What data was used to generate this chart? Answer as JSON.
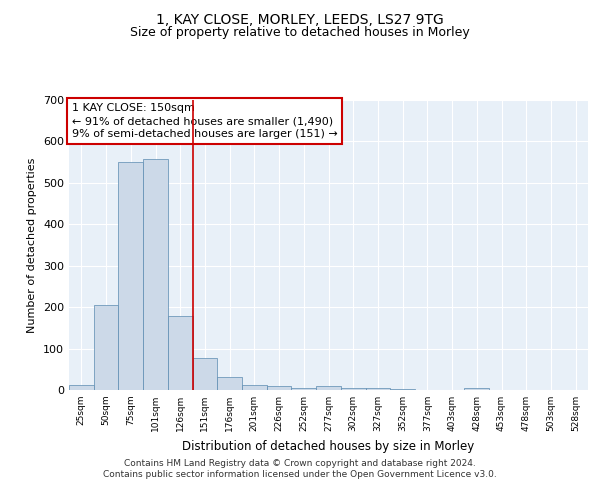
{
  "title1": "1, KAY CLOSE, MORLEY, LEEDS, LS27 9TG",
  "title2": "Size of property relative to detached houses in Morley",
  "xlabel": "Distribution of detached houses by size in Morley",
  "ylabel": "Number of detached properties",
  "footer1": "Contains HM Land Registry data © Crown copyright and database right 2024.",
  "footer2": "Contains public sector information licensed under the Open Government Licence v3.0.",
  "categories": [
    "25sqm",
    "50sqm",
    "75sqm",
    "101sqm",
    "126sqm",
    "151sqm",
    "176sqm",
    "201sqm",
    "226sqm",
    "252sqm",
    "277sqm",
    "302sqm",
    "327sqm",
    "352sqm",
    "377sqm",
    "403sqm",
    "428sqm",
    "453sqm",
    "478sqm",
    "503sqm",
    "528sqm"
  ],
  "values": [
    11,
    205,
    551,
    557,
    178,
    78,
    32,
    13,
    9,
    5,
    10,
    5,
    5,
    3,
    0,
    0,
    5,
    0,
    0,
    0,
    0
  ],
  "bar_color": "#ccd9e8",
  "bar_edge_color": "#5a8ab0",
  "annotation_line_bin": 5,
  "annotation_box_text": "1 KAY CLOSE: 150sqm\n← 91% of detached houses are smaller (1,490)\n9% of semi-detached houses are larger (151) →",
  "ylim": [
    0,
    700
  ],
  "yticks": [
    0,
    100,
    200,
    300,
    400,
    500,
    600,
    700
  ],
  "plot_bg_color": "#e8f0f8",
  "fig_bg_color": "#ffffff",
  "grid_color": "#ffffff",
  "red_line_color": "#cc0000",
  "box_edge_color": "#cc0000",
  "title1_fontsize": 10,
  "title2_fontsize": 9,
  "annotation_fontsize": 8,
  "ylabel_fontsize": 8,
  "xlabel_fontsize": 8.5,
  "footer_fontsize": 6.5,
  "xtick_fontsize": 6.5,
  "ytick_fontsize": 8
}
